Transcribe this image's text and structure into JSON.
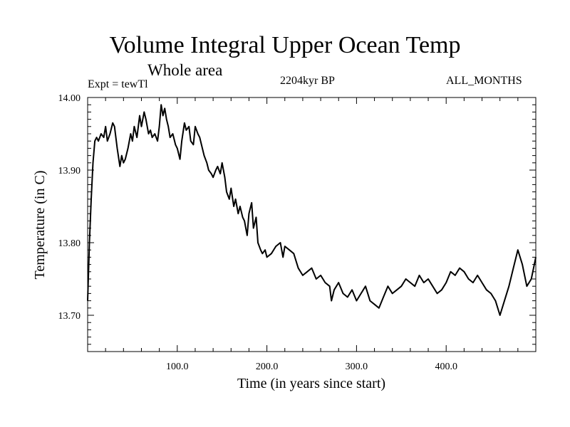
{
  "chart_data": {
    "type": "line",
    "title": "Volume Integral Upper Ocean Temp",
    "subtitle": "Whole area",
    "experiment_label": "Expt = tewTl",
    "period_label": "2204kyr BP",
    "months_label": "ALL_MONTHS",
    "xlabel": "Time (in years since start)",
    "ylabel": "Temperature (in C)",
    "xlim": [
      0,
      500
    ],
    "ylim": [
      13.65,
      14.0
    ],
    "x_ticks": [
      {
        "value": 100,
        "label": "100.0"
      },
      {
        "value": 200,
        "label": "200.0"
      },
      {
        "value": 300,
        "label": "300.0"
      },
      {
        "value": 400,
        "label": "400.0"
      }
    ],
    "y_ticks": [
      {
        "value": 13.7,
        "label": "13.70"
      },
      {
        "value": 13.8,
        "label": "13.80"
      },
      {
        "value": 13.9,
        "label": "13.90"
      },
      {
        "value": 14.0,
        "label": "14.00"
      }
    ],
    "series": [
      {
        "name": "tewTl",
        "color": "#000000",
        "x": [
          0,
          2,
          4,
          6,
          8,
          10,
          12,
          15,
          18,
          20,
          22,
          25,
          28,
          30,
          33,
          36,
          38,
          40,
          42,
          45,
          48,
          50,
          52,
          55,
          58,
          60,
          63,
          65,
          68,
          70,
          72,
          75,
          78,
          80,
          82,
          84,
          86,
          88,
          90,
          92,
          95,
          98,
          100,
          103,
          105,
          108,
          110,
          113,
          115,
          118,
          120,
          123,
          125,
          128,
          130,
          133,
          135,
          138,
          140,
          143,
          145,
          148,
          150,
          153,
          155,
          158,
          160,
          163,
          165,
          168,
          170,
          173,
          175,
          178,
          180,
          183,
          185,
          188,
          190,
          193,
          195,
          198,
          200,
          205,
          210,
          215,
          218,
          220,
          225,
          230,
          235,
          240,
          245,
          250,
          255,
          260,
          265,
          270,
          272,
          275,
          280,
          285,
          290,
          295,
          300,
          305,
          310,
          315,
          320,
          325,
          330,
          335,
          340,
          345,
          350,
          355,
          360,
          365,
          370,
          375,
          380,
          385,
          390,
          395,
          400,
          405,
          410,
          415,
          420,
          425,
          430,
          435,
          440,
          445,
          450,
          455,
          460,
          465,
          470,
          475,
          480,
          485,
          490,
          495,
          500
        ],
        "values": [
          13.72,
          13.8,
          13.86,
          13.91,
          13.94,
          13.945,
          13.94,
          13.95,
          13.945,
          13.96,
          13.94,
          13.95,
          13.965,
          13.96,
          13.93,
          13.905,
          13.92,
          13.91,
          13.915,
          13.93,
          13.95,
          13.94,
          13.96,
          13.945,
          13.975,
          13.96,
          13.98,
          13.97,
          13.95,
          13.955,
          13.945,
          13.95,
          13.94,
          13.96,
          13.99,
          13.975,
          13.985,
          13.97,
          13.96,
          13.945,
          13.95,
          13.935,
          13.93,
          13.915,
          13.94,
          13.965,
          13.955,
          13.96,
          13.94,
          13.935,
          13.96,
          13.95,
          13.945,
          13.93,
          13.92,
          13.91,
          13.9,
          13.895,
          13.89,
          13.9,
          13.905,
          13.895,
          13.91,
          13.89,
          13.87,
          13.86,
          13.875,
          13.85,
          13.86,
          13.84,
          13.85,
          13.835,
          13.83,
          13.81,
          13.84,
          13.855,
          13.82,
          13.835,
          13.8,
          13.79,
          13.785,
          13.79,
          13.78,
          13.785,
          13.795,
          13.8,
          13.78,
          13.795,
          13.79,
          13.785,
          13.765,
          13.755,
          13.76,
          13.765,
          13.75,
          13.755,
          13.745,
          13.74,
          13.72,
          13.735,
          13.745,
          13.73,
          13.725,
          13.735,
          13.72,
          13.73,
          13.74,
          13.72,
          13.715,
          13.71,
          13.725,
          13.74,
          13.73,
          13.735,
          13.74,
          13.75,
          13.745,
          13.74,
          13.755,
          13.745,
          13.75,
          13.74,
          13.73,
          13.735,
          13.745,
          13.76,
          13.755,
          13.765,
          13.76,
          13.75,
          13.745,
          13.755,
          13.745,
          13.735,
          13.73,
          13.72,
          13.7,
          13.72,
          13.74,
          13.765,
          13.79,
          13.77,
          13.74,
          13.75,
          13.78
        ]
      }
    ]
  }
}
